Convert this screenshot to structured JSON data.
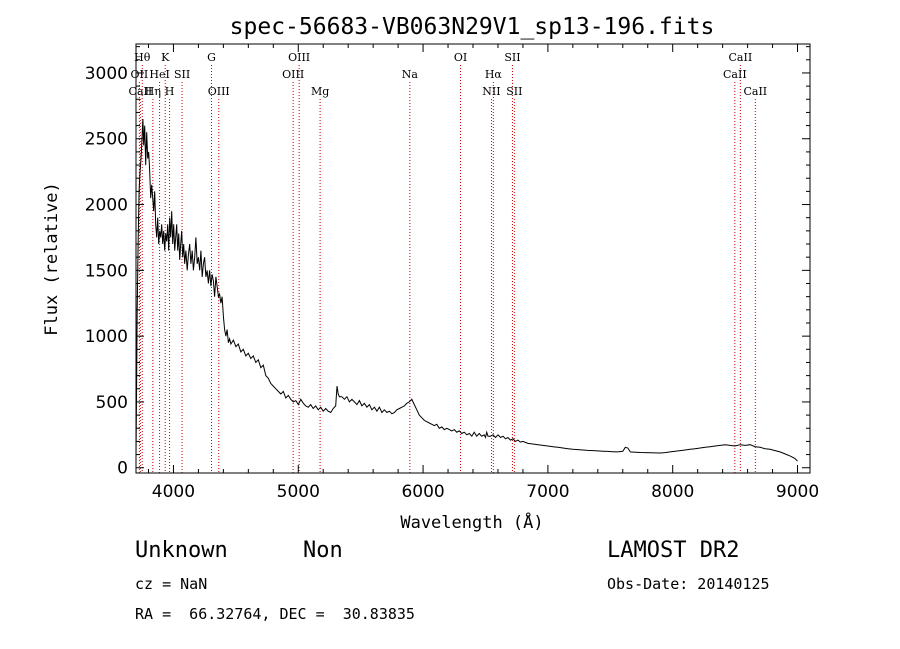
{
  "chart_data": {
    "type": "line",
    "title": "spec-56683-VB063N29V1_sp13-196.fits",
    "xlabel": "Wavelength (Å)",
    "ylabel": "Flux (relative)",
    "xlim": [
      3700,
      9100
    ],
    "ylim": [
      -40,
      3220
    ],
    "xticks": [
      4000,
      5000,
      6000,
      7000,
      8000,
      9000
    ],
    "yticks": [
      0,
      500,
      1000,
      1500,
      2000,
      2500,
      3000
    ],
    "grid": false,
    "series": [
      {
        "values": [
          [
            3700,
            80
          ],
          [
            3705,
            600
          ],
          [
            3710,
            1200
          ],
          [
            3718,
            1750
          ],
          [
            3725,
            2100
          ],
          [
            3732,
            2250
          ],
          [
            3740,
            2350
          ],
          [
            3748,
            2500
          ],
          [
            3755,
            2650
          ],
          [
            3762,
            2450
          ],
          [
            3770,
            2600
          ],
          [
            3778,
            2300
          ],
          [
            3786,
            2550
          ],
          [
            3794,
            2350
          ],
          [
            3802,
            2400
          ],
          [
            3810,
            2250
          ],
          [
            3818,
            2050
          ],
          [
            3826,
            2150
          ],
          [
            3834,
            2050
          ],
          [
            3842,
            1950
          ],
          [
            3850,
            2100
          ],
          [
            3858,
            1850
          ],
          [
            3866,
            1750
          ],
          [
            3874,
            1900
          ],
          [
            3882,
            1700
          ],
          [
            3890,
            1800
          ],
          [
            3898,
            1750
          ],
          [
            3906,
            1850
          ],
          [
            3914,
            1700
          ],
          [
            3922,
            1800
          ],
          [
            3930,
            1650
          ],
          [
            3938,
            1780
          ],
          [
            3946,
            1720
          ],
          [
            3954,
            1850
          ],
          [
            3962,
            1650
          ],
          [
            3970,
            1900
          ],
          [
            3978,
            1750
          ],
          [
            3986,
            1950
          ],
          [
            3994,
            1700
          ],
          [
            4002,
            1850
          ],
          [
            4010,
            1650
          ],
          [
            4018,
            1750
          ],
          [
            4026,
            1850
          ],
          [
            4034,
            1650
          ],
          [
            4042,
            1780
          ],
          [
            4050,
            1580
          ],
          [
            4058,
            1700
          ],
          [
            4066,
            1800
          ],
          [
            4074,
            1600
          ],
          [
            4082,
            1700
          ],
          [
            4090,
            1550
          ],
          [
            4100,
            1650
          ],
          [
            4110,
            1500
          ],
          [
            4120,
            1620
          ],
          [
            4130,
            1700
          ],
          [
            4140,
            1550
          ],
          [
            4150,
            1650
          ],
          [
            4160,
            1500
          ],
          [
            4170,
            1600
          ],
          [
            4180,
            1750
          ],
          [
            4190,
            1550
          ],
          [
            4200,
            1600
          ],
          [
            4210,
            1500
          ],
          [
            4220,
            1650
          ],
          [
            4230,
            1450
          ],
          [
            4240,
            1550
          ],
          [
            4250,
            1600
          ],
          [
            4260,
            1450
          ],
          [
            4270,
            1500
          ],
          [
            4280,
            1400
          ],
          [
            4290,
            1500
          ],
          [
            4300,
            1380
          ],
          [
            4310,
            1470
          ],
          [
            4320,
            1420
          ],
          [
            4330,
            1300
          ],
          [
            4340,
            1450
          ],
          [
            4350,
            1380
          ],
          [
            4360,
            1300
          ],
          [
            4370,
            1320
          ],
          [
            4380,
            1250
          ],
          [
            4390,
            1300
          ],
          [
            4400,
            1150
          ],
          [
            4410,
            1050
          ],
          [
            4420,
            1000
          ],
          [
            4430,
            1050
          ],
          [
            4440,
            950
          ],
          [
            4450,
            980
          ],
          [
            4460,
            940
          ],
          [
            4480,
            970
          ],
          [
            4500,
            920
          ],
          [
            4520,
            940
          ],
          [
            4540,
            880
          ],
          [
            4560,
            900
          ],
          [
            4580,
            850
          ],
          [
            4600,
            870
          ],
          [
            4620,
            830
          ],
          [
            4640,
            850
          ],
          [
            4660,
            800
          ],
          [
            4680,
            820
          ],
          [
            4700,
            760
          ],
          [
            4720,
            780
          ],
          [
            4740,
            700
          ],
          [
            4760,
            680
          ],
          [
            4780,
            640
          ],
          [
            4800,
            620
          ],
          [
            4820,
            600
          ],
          [
            4840,
            580
          ],
          [
            4860,
            560
          ],
          [
            4880,
            580
          ],
          [
            4900,
            530
          ],
          [
            4920,
            550
          ],
          [
            4940,
            520
          ],
          [
            4960,
            500
          ],
          [
            4980,
            510
          ],
          [
            5000,
            480
          ],
          [
            5020,
            520
          ],
          [
            5040,
            490
          ],
          [
            5060,
            470
          ],
          [
            5080,
            460
          ],
          [
            5100,
            480
          ],
          [
            5120,
            450
          ],
          [
            5140,
            470
          ],
          [
            5160,
            440
          ],
          [
            5180,
            460
          ],
          [
            5200,
            430
          ],
          [
            5220,
            450
          ],
          [
            5240,
            430
          ],
          [
            5260,
            420
          ],
          [
            5280,
            450
          ],
          [
            5300,
            470
          ],
          [
            5310,
            620
          ],
          [
            5320,
            560
          ],
          [
            5330,
            540
          ],
          [
            5350,
            540
          ],
          [
            5370,
            520
          ],
          [
            5390,
            540
          ],
          [
            5410,
            500
          ],
          [
            5430,
            520
          ],
          [
            5450,
            500
          ],
          [
            5470,
            480
          ],
          [
            5490,
            510
          ],
          [
            5510,
            470
          ],
          [
            5530,
            490
          ],
          [
            5550,
            460
          ],
          [
            5570,
            480
          ],
          [
            5590,
            440
          ],
          [
            5610,
            460
          ],
          [
            5630,
            430
          ],
          [
            5650,
            460
          ],
          [
            5670,
            420
          ],
          [
            5690,
            440
          ],
          [
            5710,
            420
          ],
          [
            5730,
            430
          ],
          [
            5750,
            410
          ],
          [
            5770,
            420
          ],
          [
            5790,
            440
          ],
          [
            5810,
            450
          ],
          [
            5830,
            460
          ],
          [
            5850,
            470
          ],
          [
            5870,
            490
          ],
          [
            5890,
            500
          ],
          [
            5910,
            520
          ],
          [
            5930,
            480
          ],
          [
            5950,
            440
          ],
          [
            5970,
            400
          ],
          [
            5990,
            380
          ],
          [
            6010,
            360
          ],
          [
            6030,
            350
          ],
          [
            6050,
            340
          ],
          [
            6070,
            330
          ],
          [
            6090,
            320
          ],
          [
            6110,
            330
          ],
          [
            6130,
            300
          ],
          [
            6150,
            310
          ],
          [
            6170,
            290
          ],
          [
            6190,
            300
          ],
          [
            6210,
            290
          ],
          [
            6230,
            280
          ],
          [
            6250,
            290
          ],
          [
            6270,
            270
          ],
          [
            6290,
            280
          ],
          [
            6310,
            260
          ],
          [
            6330,
            270
          ],
          [
            6350,
            250
          ],
          [
            6370,
            260
          ],
          [
            6390,
            240
          ],
          [
            6410,
            270
          ],
          [
            6430,
            240
          ],
          [
            6450,
            260
          ],
          [
            6470,
            240
          ],
          [
            6490,
            250
          ],
          [
            6500,
            230
          ],
          [
            6510,
            270
          ],
          [
            6520,
            240
          ],
          [
            6540,
            240
          ],
          [
            6560,
            250
          ],
          [
            6580,
            230
          ],
          [
            6600,
            250
          ],
          [
            6620,
            230
          ],
          [
            6640,
            240
          ],
          [
            6660,
            220
          ],
          [
            6680,
            230
          ],
          [
            6700,
            210
          ],
          [
            6720,
            220
          ],
          [
            6740,
            200
          ],
          [
            6760,
            210
          ],
          [
            6780,
            195
          ],
          [
            6800,
            200
          ],
          [
            6840,
            185
          ],
          [
            6880,
            180
          ],
          [
            6920,
            175
          ],
          [
            6960,
            170
          ],
          [
            7000,
            165
          ],
          [
            7040,
            160
          ],
          [
            7080,
            155
          ],
          [
            7120,
            150
          ],
          [
            7160,
            145
          ],
          [
            7200,
            140
          ],
          [
            7240,
            138
          ],
          [
            7280,
            135
          ],
          [
            7320,
            132
          ],
          [
            7360,
            130
          ],
          [
            7400,
            128
          ],
          [
            7440,
            126
          ],
          [
            7480,
            124
          ],
          [
            7520,
            122
          ],
          [
            7560,
            120
          ],
          [
            7600,
            125
          ],
          [
            7620,
            155
          ],
          [
            7640,
            150
          ],
          [
            7660,
            120
          ],
          [
            7700,
            118
          ],
          [
            7740,
            116
          ],
          [
            7780,
            115
          ],
          [
            7820,
            114
          ],
          [
            7860,
            113
          ],
          [
            7900,
            112
          ],
          [
            7940,
            115
          ],
          [
            7980,
            120
          ],
          [
            8020,
            125
          ],
          [
            8060,
            130
          ],
          [
            8100,
            135
          ],
          [
            8140,
            140
          ],
          [
            8180,
            145
          ],
          [
            8220,
            150
          ],
          [
            8260,
            155
          ],
          [
            8300,
            160
          ],
          [
            8340,
            165
          ],
          [
            8380,
            170
          ],
          [
            8420,
            175
          ],
          [
            8460,
            170
          ],
          [
            8500,
            165
          ],
          [
            8540,
            175
          ],
          [
            8580,
            170
          ],
          [
            8620,
            175
          ],
          [
            8660,
            160
          ],
          [
            8700,
            155
          ],
          [
            8740,
            145
          ],
          [
            8780,
            140
          ],
          [
            8820,
            130
          ],
          [
            8860,
            120
          ],
          [
            8900,
            105
          ],
          [
            8940,
            90
          ],
          [
            8980,
            70
          ],
          [
            9000,
            50
          ]
        ]
      }
    ],
    "line_marks": [
      {
        "label": "Hθ",
        "wavelength": 3750,
        "row": 1
      },
      {
        "label": "OII",
        "wavelength": 3727,
        "row": 2
      },
      {
        "label": "CaII",
        "wavelength": 3735,
        "row": 3
      },
      {
        "label": "K",
        "wavelength": 3934,
        "row": 1
      },
      {
        "label": "HeI",
        "wavelength": 3889,
        "row": 2
      },
      {
        "label": "Hη",
        "wavelength": 3835,
        "row": 3
      },
      {
        "label": "SII",
        "wavelength": 4069,
        "row": 2
      },
      {
        "label": "H",
        "wavelength": 3969,
        "row": 3
      },
      {
        "label": "G",
        "wavelength": 4305,
        "row": 1
      },
      {
        "label": "OIII",
        "wavelength": 4363,
        "row": 3
      },
      {
        "label": "OIII",
        "wavelength": 5007,
        "row": 1
      },
      {
        "label": "OIII",
        "wavelength": 4959,
        "row": 2
      },
      {
        "label": "Mg",
        "wavelength": 5175,
        "row": 3
      },
      {
        "label": "Na",
        "wavelength": 5894,
        "row": 2
      },
      {
        "label": "OI",
        "wavelength": 6300,
        "row": 1
      },
      {
        "label": "Hα",
        "wavelength": 6563,
        "row": 2
      },
      {
        "label": "NII",
        "wavelength": 6548,
        "row": 3
      },
      {
        "label": "SII",
        "wavelength": 6716,
        "row": 1
      },
      {
        "label": "SII",
        "wavelength": 6731,
        "row": 3
      },
      {
        "label": "CaII",
        "wavelength": 8542,
        "row": 1
      },
      {
        "label": "CaII",
        "wavelength": 8498,
        "row": 2
      },
      {
        "label": "CaII",
        "wavelength": 8662,
        "row": 3
      }
    ]
  },
  "info": {
    "object_class": "Unknown",
    "object_subclass": "Non",
    "survey": "LAMOST DR2",
    "redshift": "cz = NaN",
    "obs_date": "Obs-Date: 20140125",
    "coords": "RA =  66.32764, DEC =  30.83835"
  }
}
